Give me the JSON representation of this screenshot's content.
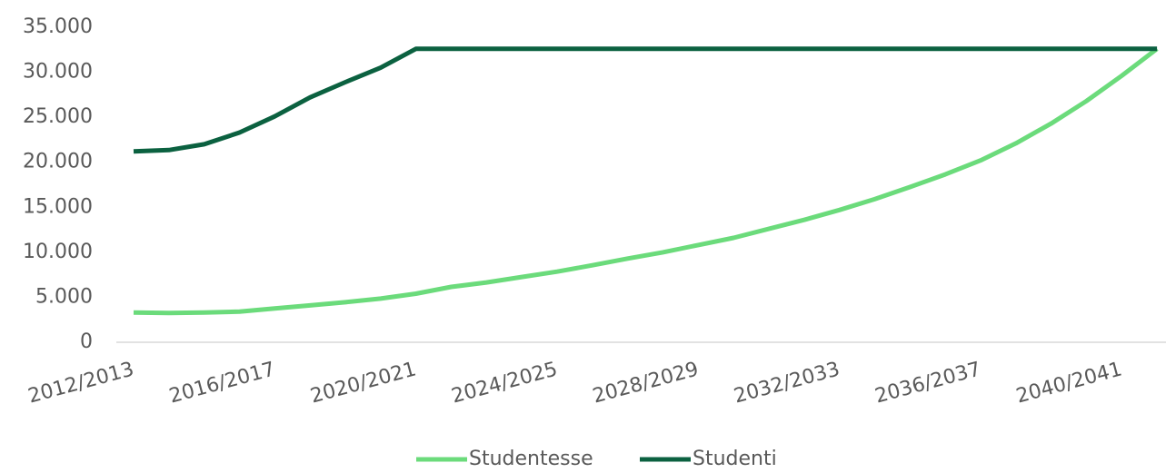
{
  "chart_data": {
    "type": "line",
    "categories": [
      "2012/2013",
      null,
      null,
      null,
      "2016/2017",
      null,
      null,
      null,
      "2020/2021",
      null,
      null,
      null,
      "2024/2025",
      null,
      null,
      null,
      "2028/2029",
      null,
      null,
      null,
      "2032/2033",
      null,
      null,
      null,
      "2036/2037",
      null,
      null,
      null,
      "2040/2041",
      null
    ],
    "series": [
      {
        "name": "Studentesse",
        "color": "#6bdb7b",
        "values": [
          3300,
          3250,
          3300,
          3400,
          3750,
          4100,
          4450,
          4850,
          5400,
          6150,
          6650,
          7250,
          7850,
          8550,
          9300,
          10000,
          10800,
          11600,
          12600,
          13600,
          14700,
          15900,
          17250,
          18650,
          20200,
          22100,
          24300,
          26800,
          29600,
          32600
        ]
      },
      {
        "name": "Studenti",
        "color": "#0b6140",
        "values": [
          21200,
          21350,
          22000,
          23300,
          25100,
          27200,
          28900,
          30500,
          32600,
          32600,
          32600,
          32600,
          32600,
          32600,
          32600,
          32600,
          32600,
          32600,
          32600,
          32600,
          32600,
          32600,
          32600,
          32600,
          32600,
          32600,
          32600,
          32600,
          32600,
          32600
        ]
      }
    ],
    "ylim": [
      0,
      35000
    ],
    "yticks": [
      0,
      {
        "value": 5000,
        "label": "5.000"
      },
      {
        "value": 10000,
        "label": "10.000"
      },
      {
        "value": 15000,
        "label": "15.000"
      },
      {
        "value": 20000,
        "label": "20.000"
      },
      {
        "value": 25000,
        "label": "25.000"
      },
      {
        "value": 30000,
        "label": "30.000"
      },
      {
        "value": 35000,
        "label": "35.000"
      }
    ],
    "grid": false,
    "legend": "bottom"
  }
}
